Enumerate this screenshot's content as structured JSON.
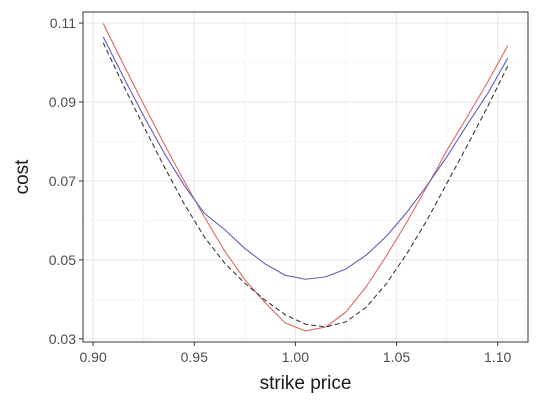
{
  "chart_data": {
    "type": "line",
    "title": "",
    "xlabel": "strike price",
    "ylabel": "cost",
    "xlim": [
      0.895,
      1.115
    ],
    "ylim": [
      0.0292,
      0.1128
    ],
    "x_ticks": [
      0.9,
      0.95,
      1.0,
      1.05,
      1.1
    ],
    "x_tick_labels": [
      "0.90",
      "0.95",
      "1.00",
      "1.05",
      "1.10"
    ],
    "y_ticks": [
      0.03,
      0.05,
      0.07,
      0.09,
      0.11
    ],
    "y_tick_labels": [
      "0.03",
      "0.05",
      "0.07",
      "0.09",
      "0.11"
    ],
    "grid": true,
    "legend": "none",
    "x": [
      0.905,
      0.915,
      0.925,
      0.935,
      0.945,
      0.955,
      0.965,
      0.975,
      0.985,
      0.995,
      1.005,
      1.015,
      1.025,
      1.035,
      1.045,
      1.055,
      1.065,
      1.075,
      1.085,
      1.095,
      1.105
    ],
    "series": [
      {
        "color": "#e0675f",
        "dash": "solid",
        "values": [
          0.1099,
          0.0995,
          0.0894,
          0.0795,
          0.07,
          0.0609,
          0.0523,
          0.045,
          0.0392,
          0.034,
          0.032,
          0.033,
          0.0368,
          0.0432,
          0.051,
          0.0595,
          0.0685,
          0.0778,
          0.0863,
          0.095,
          0.1043
        ]
      },
      {
        "color": "#5d60bd",
        "dash": "solid",
        "values": [
          0.1065,
          0.0963,
          0.0865,
          0.0772,
          0.0689,
          0.0618,
          0.0577,
          0.0529,
          0.049,
          0.0461,
          0.0451,
          0.0457,
          0.0477,
          0.0512,
          0.056,
          0.062,
          0.0688,
          0.0762,
          0.0843,
          0.0921,
          0.1011
        ]
      },
      {
        "color": "#3a3a3a",
        "dash": "dashed",
        "values": [
          0.105,
          0.0942,
          0.0838,
          0.0738,
          0.0642,
          0.0558,
          0.0492,
          0.0441,
          0.0398,
          0.0361,
          0.0337,
          0.033,
          0.0343,
          0.038,
          0.044,
          0.0515,
          0.06,
          0.0695,
          0.079,
          0.0888,
          0.0991
        ]
      }
    ]
  }
}
